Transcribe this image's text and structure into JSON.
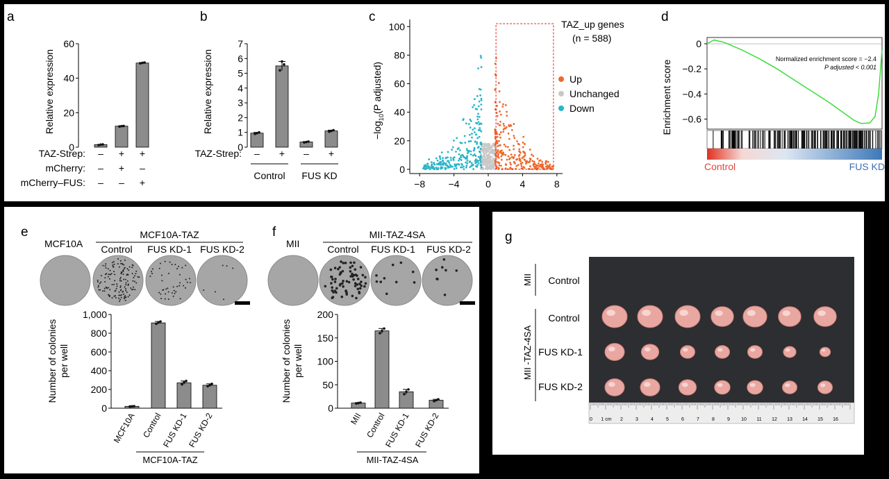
{
  "panel_letters": {
    "a": "a",
    "b": "b",
    "c": "c",
    "d": "d",
    "e": "e",
    "f": "f",
    "g": "g"
  },
  "chart_data": [
    {
      "id": "a",
      "type": "bar",
      "ylabel": "Relative expression",
      "yticks": [
        0,
        20,
        40,
        60
      ],
      "ylim": [
        0,
        60
      ],
      "values": [
        1.5,
        12.2,
        48.8
      ],
      "points": [
        [
          1.2,
          1.5,
          1.6
        ],
        [
          12.0,
          12.2,
          12.3
        ],
        [
          48.6,
          48.9,
          49.1
        ]
      ],
      "row_labels": [
        "TAZ-Strep:",
        "mCherry:",
        "mCherry–FUS:"
      ],
      "rows": [
        [
          "–",
          "+",
          "+"
        ],
        [
          "–",
          "+",
          "–"
        ],
        [
          "–",
          "–",
          "+"
        ]
      ]
    },
    {
      "id": "b",
      "type": "bar",
      "ylabel": "Relative expression",
      "yticks": [
        0,
        1,
        2,
        3,
        4,
        5,
        6,
        7
      ],
      "ylim": [
        0,
        7
      ],
      "values": [
        0.95,
        5.5,
        0.35,
        1.1
      ],
      "points": [
        [
          0.9,
          0.95,
          1.0
        ],
        [
          5.2,
          5.8,
          5.6
        ],
        [
          0.32,
          0.35,
          0.38
        ],
        [
          1.05,
          1.1,
          1.15
        ]
      ],
      "row_labels": [
        "TAZ-Strep:"
      ],
      "rows": [
        [
          "–",
          "+",
          "–",
          "+"
        ]
      ],
      "groups": [
        "Control",
        "FUS KD"
      ]
    },
    {
      "id": "c",
      "type": "scatter",
      "xticks": [
        -8,
        -4,
        0,
        4,
        8
      ],
      "xlim": [
        -8.5,
        8.5
      ],
      "yticks": [
        0,
        20,
        40,
        60,
        80,
        100
      ],
      "ylim": [
        -2,
        105
      ],
      "ylabel_prefix": "−log",
      "ylabel_sub": "10",
      "ylabel_suffix": "(P adjusted)",
      "box_title": "TAZ_up genes",
      "box_n": "(n = 588)",
      "legend": [
        {
          "name": "Up",
          "color": "#ee6a2c"
        },
        {
          "name": "Unchanged",
          "color": "#c8c8c8"
        },
        {
          "name": "Down",
          "color": "#29b5c8"
        }
      ]
    },
    {
      "id": "d",
      "type": "line",
      "ylabel": "Enrichment score",
      "yticks": [
        0,
        -0.2,
        -0.4,
        -0.6
      ],
      "ylim": [
        -0.68,
        0.05
      ],
      "annotation_1": "Normalized enrichment score = −2.4",
      "annotation_2": "P adjusted < 0.001",
      "x_left_label": "Control",
      "x_right_label": "FUS KD",
      "curve": [
        [
          0,
          0.0
        ],
        [
          0.04,
          0.03
        ],
        [
          0.1,
          0.01
        ],
        [
          0.2,
          -0.05
        ],
        [
          0.3,
          -0.12
        ],
        [
          0.4,
          -0.2
        ],
        [
          0.5,
          -0.29
        ],
        [
          0.6,
          -0.38
        ],
        [
          0.7,
          -0.47
        ],
        [
          0.78,
          -0.55
        ],
        [
          0.84,
          -0.61
        ],
        [
          0.88,
          -0.635
        ],
        [
          0.93,
          -0.63
        ],
        [
          0.96,
          -0.58
        ],
        [
          0.98,
          -0.4
        ],
        [
          1.0,
          -0.05
        ]
      ]
    },
    {
      "id": "e",
      "type": "bar",
      "cell_line": "MCF10A",
      "top_group": "MCF10A-TAZ",
      "column_labels": [
        "Control",
        "FUS KD-1",
        "FUS KD-2"
      ],
      "ylabel_1": "Number of colonies",
      "ylabel_2": "per well",
      "yticks": [
        0,
        200,
        400,
        600,
        800,
        "1,000"
      ],
      "ylim": [
        0,
        1000
      ],
      "categories": [
        "MCF10A",
        "Control",
        "FUS KD-1",
        "FUS KD-2"
      ],
      "values": [
        20,
        910,
        270,
        245
      ],
      "points": [
        [
          18,
          20,
          22
        ],
        [
          900,
          915,
          925
        ],
        [
          255,
          275,
          290
        ],
        [
          235,
          245,
          260
        ]
      ],
      "bottom_group": "MCF10A-TAZ"
    },
    {
      "id": "f",
      "type": "bar",
      "cell_line": "MII",
      "top_group": "MII-TAZ-4SA",
      "column_labels": [
        "Control",
        "FUS KD-1",
        "FUS KD-2"
      ],
      "ylabel_1": "Number of colonies",
      "ylabel_2": "per well",
      "yticks": [
        0,
        50,
        100,
        150,
        200
      ],
      "ylim": [
        0,
        200
      ],
      "categories": [
        "MII",
        "Control",
        "FUS KD-1",
        "FUS KD-2"
      ],
      "values": [
        11,
        165,
        35,
        17
      ],
      "points": [
        [
          10,
          11,
          12
        ],
        [
          160,
          165,
          170
        ],
        [
          30,
          35,
          40
        ],
        [
          15,
          17,
          19
        ]
      ],
      "bottom_group": "MII-TAZ-4SA"
    }
  ],
  "panel_g": {
    "group_1": "MII",
    "group_2": "MII -TAZ-4SA",
    "rows": [
      "Control",
      "Control",
      "FUS KD-1",
      "FUS KD-2"
    ],
    "ruler_numbers": [
      "0",
      "1 cm",
      "2",
      "3",
      "4",
      "5",
      "6",
      "7",
      "8",
      "9",
      "10",
      "11",
      "12",
      "13",
      "14",
      "15",
      "16"
    ]
  }
}
